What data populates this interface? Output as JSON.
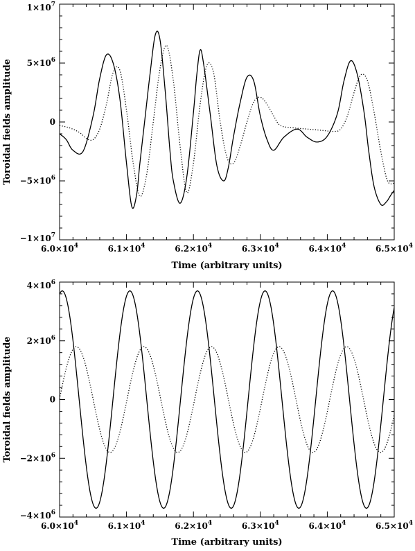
{
  "chart_data": [
    {
      "type": "line",
      "xlabel": "Time (arbitrary units)",
      "ylabel": "Toroidal fields amplitude",
      "xlim": [
        60000,
        65000
      ],
      "ylim": [
        -10000000,
        10000000
      ],
      "x_ticks": [
        {
          "base": "6.0×10",
          "exp": "4"
        },
        {
          "base": "6.1×10",
          "exp": "4"
        },
        {
          "base": "6.2×10",
          "exp": "4"
        },
        {
          "base": "6.3×10",
          "exp": "4"
        },
        {
          "base": "6.4×10",
          "exp": "4"
        },
        {
          "base": "6.5×10",
          "exp": "4"
        }
      ],
      "y_ticks": [
        {
          "value": -10000000,
          "base": "−1×10",
          "exp": "7"
        },
        {
          "value": -5000000,
          "base": "−5×10",
          "exp": "6"
        },
        {
          "value": 0,
          "base": "0",
          "exp": ""
        },
        {
          "value": 5000000,
          "base": "5×10",
          "exp": "6"
        },
        {
          "value": 10000000,
          "base": "1×10",
          "exp": "7"
        }
      ],
      "series": [
        {
          "style": "solid",
          "x": [
            60000,
            60100,
            60200,
            60350,
            60500,
            60600,
            60700,
            60800,
            60900,
            61000,
            61080,
            61150,
            61200,
            61280,
            61350,
            61430,
            61500,
            61580,
            61650,
            61700,
            61800,
            61900,
            62000,
            62050,
            62100,
            62150,
            62250,
            62350,
            62450,
            62520,
            62600,
            62700,
            62800,
            62900,
            63000,
            63100,
            63200,
            63350,
            63550,
            63700,
            63850,
            64000,
            64150,
            64250,
            64350,
            64450,
            64550,
            64620,
            64700,
            64800,
            64880,
            64950,
            65000
          ],
          "y": [
            -1000000,
            -1500000,
            -2400000,
            -2500000,
            500000,
            3700000,
            5700000,
            5000000,
            2000000,
            -3500000,
            -7200000,
            -6200000,
            -3500000,
            500000,
            4000000,
            7400000,
            7000000,
            2500000,
            -2500000,
            -5000000,
            -6900000,
            -4700000,
            800000,
            4000000,
            6100000,
            5000000,
            700000,
            -3700000,
            -5000000,
            -3900000,
            -1200000,
            1700000,
            3800000,
            3500000,
            500000,
            -1500000,
            -2400000,
            -1300000,
            -600000,
            -1300000,
            -1700000,
            -1200000,
            700000,
            3500000,
            5200000,
            4000000,
            800000,
            -2500000,
            -5500000,
            -7000000,
            -6800000,
            -6200000,
            -5800000
          ]
        },
        {
          "style": "dotted",
          "x": [
            60000,
            60150,
            60300,
            60400,
            60500,
            60600,
            60700,
            60800,
            60900,
            61000,
            61100,
            61200,
            61300,
            61400,
            61500,
            61600,
            61700,
            61800,
            61900,
            62000,
            62100,
            62200,
            62300,
            62400,
            62500,
            62600,
            62700,
            62800,
            62900,
            63000,
            63100,
            63200,
            63300,
            63500,
            63700,
            63900,
            64100,
            64200,
            64300,
            64400,
            64500,
            64600,
            64700,
            64800,
            64900,
            65000
          ],
          "y": [
            -300000,
            -500000,
            -900000,
            -1400000,
            -1500000,
            -600000,
            1500000,
            4200000,
            4400000,
            1000000,
            -3500000,
            -6300000,
            -4500000,
            0,
            4500000,
            6500000,
            3500000,
            -2000000,
            -6000000,
            -3500000,
            1500000,
            4800000,
            4200000,
            0,
            -3000000,
            -3500000,
            -2000000,
            0,
            1700000,
            2100000,
            1500000,
            500000,
            -300000,
            -500000,
            -600000,
            -700000,
            -800000,
            -600000,
            500000,
            2500000,
            4000000,
            3500000,
            800000,
            -2500000,
            -5000000,
            -5200000
          ]
        }
      ]
    },
    {
      "type": "line",
      "xlabel": "Time (arbitrary units)",
      "ylabel": "Toroidal fields amplitude",
      "xlim": [
        60000,
        65000
      ],
      "ylim": [
        -4000000,
        4000000
      ],
      "x_ticks": [
        {
          "base": "6.0×10",
          "exp": "4"
        },
        {
          "base": "6.1×10",
          "exp": "4"
        },
        {
          "base": "6.2×10",
          "exp": "4"
        },
        {
          "base": "6.3×10",
          "exp": "4"
        },
        {
          "base": "6.4×10",
          "exp": "4"
        },
        {
          "base": "6.5×10",
          "exp": "4"
        }
      ],
      "y_ticks": [
        {
          "value": -4000000,
          "base": "−4×10",
          "exp": "6"
        },
        {
          "value": -2000000,
          "base": "−2×10",
          "exp": "6"
        },
        {
          "value": 0,
          "base": "0",
          "exp": ""
        },
        {
          "value": 2000000,
          "base": "2×10",
          "exp": "6"
        },
        {
          "value": 4000000,
          "base": "4×10",
          "exp": "6"
        }
      ],
      "series": [
        {
          "style": "solid",
          "amplitude": 3700000,
          "period": 1010,
          "first_peak_x": 60040
        },
        {
          "style": "dotted",
          "amplitude": 1800000,
          "period": 1010,
          "first_peak_x": 60250
        }
      ]
    }
  ]
}
